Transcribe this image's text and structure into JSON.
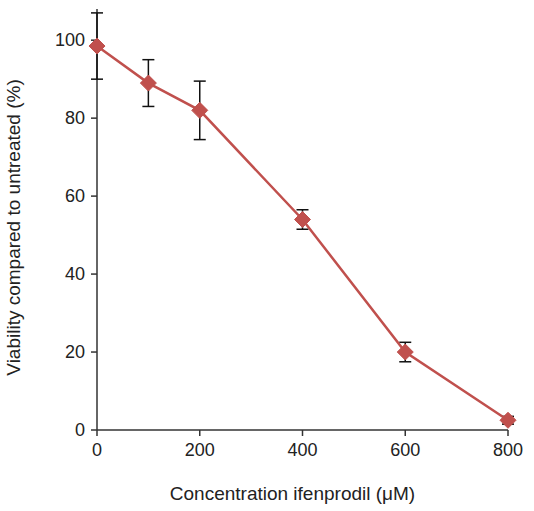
{
  "chart_data": {
    "type": "line",
    "x_label": "Concentration ifenprodil (μM)",
    "y_label": "Viability compared to untreated (%)",
    "x": [
      0,
      100,
      200,
      400,
      600,
      800
    ],
    "values": [
      98.5,
      89,
      82,
      54,
      20,
      2.5
    ],
    "errors": [
      8.5,
      6,
      7.5,
      2.5,
      2.5,
      1
    ],
    "color": "#c0504d",
    "marker": "diamond",
    "line_style": "solid",
    "xlim": [
      0,
      800
    ],
    "xticks": [
      0,
      200,
      400,
      600,
      800
    ],
    "ylim": [
      0,
      108
    ],
    "yticks": [
      0,
      20,
      40,
      60,
      80,
      100
    ],
    "grid": false
  }
}
